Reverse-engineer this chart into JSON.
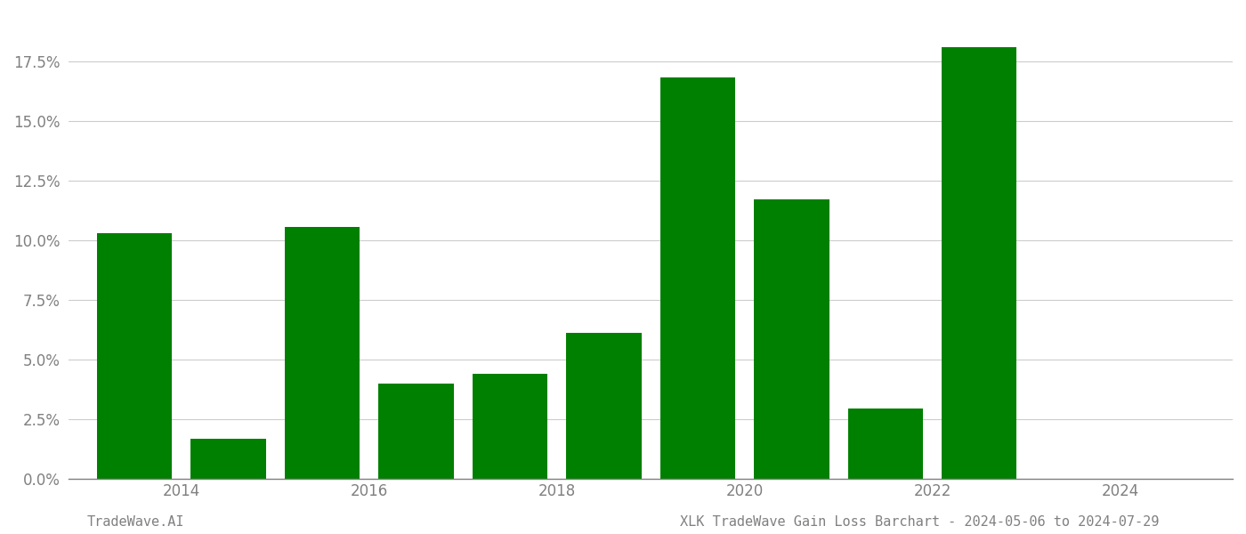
{
  "years": [
    2013,
    2014,
    2015,
    2016,
    2017,
    2018,
    2019,
    2020,
    2021,
    2022,
    2023
  ],
  "values": [
    0.103,
    0.017,
    0.1055,
    0.04,
    0.044,
    0.061,
    0.168,
    0.117,
    0.0295,
    0.181,
    0.0
  ],
  "bar_color": "#008000",
  "background_color": "#ffffff",
  "ylabel_ticks": [
    0.0,
    0.025,
    0.05,
    0.075,
    0.1,
    0.125,
    0.15,
    0.175
  ],
  "xtick_labels": [
    "2014",
    "2016",
    "2018",
    "2020",
    "2022",
    "2024"
  ],
  "xtick_positions": [
    2013.5,
    2015.5,
    2017.5,
    2019.5,
    2021.5,
    2023.5
  ],
  "ylim": [
    0,
    0.195
  ],
  "xlim": [
    2012.3,
    2024.7
  ],
  "footer_left": "TradeWave.AI",
  "footer_right": "XLK TradeWave Gain Loss Barchart - 2024-05-06 to 2024-07-29",
  "footer_color": "#808080",
  "grid_color": "#cccccc",
  "tick_color": "#808080",
  "spine_color": "#808080",
  "bar_width": 0.8
}
